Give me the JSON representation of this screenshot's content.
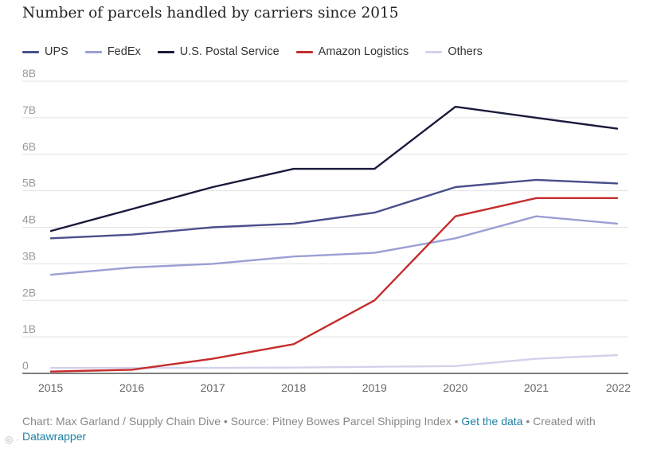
{
  "chart_data": {
    "type": "line",
    "title": "Number of parcels handled by carriers since 2015",
    "xlabel": "",
    "ylabel": "",
    "x": [
      "2015",
      "2016",
      "2017",
      "2018",
      "2019",
      "2020",
      "2021",
      "2022"
    ],
    "ylim": [
      0,
      8
    ],
    "y_ticks": [
      {
        "value": 0,
        "label": "0"
      },
      {
        "value": 1,
        "label": "1B"
      },
      {
        "value": 2,
        "label": "2B"
      },
      {
        "value": 3,
        "label": "3B"
      },
      {
        "value": 4,
        "label": "4B"
      },
      {
        "value": 5,
        "label": "5B"
      },
      {
        "value": 6,
        "label": "6B"
      },
      {
        "value": 7,
        "label": "7B"
      },
      {
        "value": 8,
        "label": "8B"
      }
    ],
    "grid": true,
    "legend": "top",
    "series": [
      {
        "name": "UPS",
        "color": "#4a4f8c",
        "values": [
          3.7,
          3.8,
          4.0,
          4.1,
          4.4,
          5.1,
          5.3,
          5.2
        ]
      },
      {
        "name": "FedEx",
        "color": "#9b9fd3",
        "values": [
          2.7,
          2.9,
          3.0,
          3.2,
          3.3,
          3.7,
          4.3,
          4.1
        ]
      },
      {
        "name": "U.S. Postal Service",
        "color": "#1a1a3d",
        "values": [
          3.9,
          4.5,
          5.1,
          5.6,
          5.6,
          7.3,
          7.0,
          6.7
        ]
      },
      {
        "name": "Amazon Logistics",
        "color": "#c62d2d",
        "values": [
          0.05,
          0.1,
          0.4,
          0.8,
          2.0,
          4.3,
          4.8,
          4.8
        ]
      },
      {
        "name": "Others",
        "color": "#d3d2ec",
        "values": [
          0.15,
          0.15,
          0.15,
          0.16,
          0.18,
          0.2,
          0.4,
          0.5
        ]
      }
    ]
  },
  "footer": {
    "credit": "Chart: Max Garland / Supply Chain Dive • Source: Pitney Bowes Parcel Shipping Index • ",
    "get_data": "Get the data",
    "created_with": " • Created with ",
    "tool": "Datawrapper"
  }
}
